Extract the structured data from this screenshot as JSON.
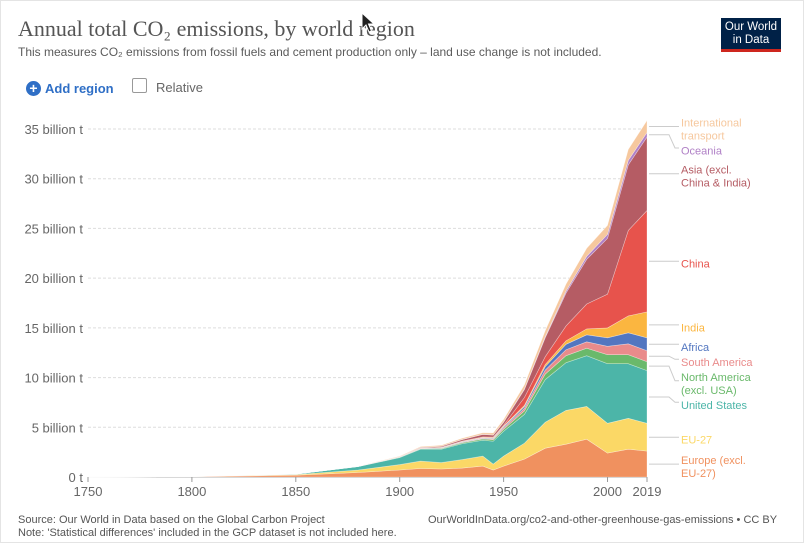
{
  "header": {
    "title": "Annual total CO₂ emissions, by world region",
    "subtitle": "This measures CO₂ emissions from fossil fuels and cement production only – land use change is not included.",
    "logo_line1": "Our World",
    "logo_line2": "in Data"
  },
  "controls": {
    "add_region_label": "Add region",
    "add_icon": "plus-circle-icon",
    "relative_label": "Relative",
    "relative_checked": false
  },
  "footer": {
    "source": "Source: Our World in Data based on the Global Carbon Project",
    "note": "Note: 'Statistical differences' included in the GCP dataset is not included here.",
    "url": "OurWorldInData.org/co2-and-other-greenhouse-gas-emissions • CC BY"
  },
  "chart_data": {
    "type": "area",
    "stacked": true,
    "x": [
      1750,
      1800,
      1850,
      1880,
      1900,
      1910,
      1920,
      1930,
      1940,
      1945,
      1950,
      1960,
      1970,
      1980,
      1990,
      2000,
      2010,
      2019
    ],
    "ylim": [
      0,
      35000000000
    ],
    "yticks": [
      0,
      5000000000,
      10000000000,
      15000000000,
      20000000000,
      25000000000,
      30000000000,
      35000000000
    ],
    "ytick_labels": [
      "0 t",
      "5 billion t",
      "10 billion t",
      "15 billion t",
      "20 billion t",
      "25 billion t",
      "30 billion t",
      "35 billion t"
    ],
    "xticks": [
      1750,
      1800,
      1850,
      1900,
      1950,
      2000,
      2019
    ],
    "xtick_labels": [
      "1750",
      "1800",
      "1850",
      "1900",
      "1950",
      "2000",
      "2019"
    ],
    "grid": true,
    "legend": "right",
    "series": [
      {
        "name": "Europe (excl. EU-27)",
        "color": "#f0915f",
        "values": [
          0.01,
          0.03,
          0.18,
          0.45,
          0.7,
          0.85,
          0.8,
          0.9,
          1.1,
          0.7,
          1.1,
          1.8,
          2.9,
          3.3,
          3.8,
          2.4,
          2.8,
          2.6
        ]
      },
      {
        "name": "EU-27",
        "color": "#fbd866",
        "values": [
          0,
          0.01,
          0.06,
          0.25,
          0.55,
          0.75,
          0.65,
          0.85,
          1.0,
          0.6,
          1.0,
          1.6,
          2.6,
          3.4,
          3.3,
          3.0,
          3.1,
          2.8
        ]
      },
      {
        "name": "United States",
        "color": "#4cb5a8",
        "values": [
          0,
          0,
          0.05,
          0.35,
          0.7,
          1.2,
          1.35,
          1.6,
          1.6,
          2.3,
          2.5,
          2.9,
          4.3,
          4.8,
          5.1,
          6.0,
          5.5,
          5.3
        ]
      },
      {
        "name": "North America (excl. USA)",
        "color": "#6ab96b",
        "values": [
          0,
          0,
          0,
          0.02,
          0.04,
          0.05,
          0.08,
          0.1,
          0.12,
          0.15,
          0.2,
          0.35,
          0.55,
          0.7,
          0.75,
          0.9,
          0.9,
          0.9
        ]
      },
      {
        "name": "South America",
        "color": "#e98b8b",
        "values": [
          0,
          0,
          0,
          0,
          0.01,
          0.02,
          0.03,
          0.05,
          0.06,
          0.08,
          0.15,
          0.25,
          0.4,
          0.6,
          0.65,
          0.85,
          1.1,
          1.1
        ]
      },
      {
        "name": "Africa",
        "color": "#5276c0",
        "values": [
          0,
          0,
          0,
          0,
          0.01,
          0.02,
          0.03,
          0.04,
          0.05,
          0.07,
          0.1,
          0.18,
          0.35,
          0.55,
          0.7,
          0.85,
          1.1,
          1.3
        ]
      },
      {
        "name": "India",
        "color": "#fbb640",
        "values": [
          0,
          0,
          0,
          0,
          0.01,
          0.02,
          0.03,
          0.04,
          0.05,
          0.06,
          0.08,
          0.12,
          0.2,
          0.35,
          0.6,
          1.0,
          1.7,
          2.6
        ]
      },
      {
        "name": "China",
        "color": "#e7534c",
        "values": [
          0,
          0,
          0,
          0,
          0,
          0.01,
          0.02,
          0.03,
          0.05,
          0.05,
          0.08,
          0.8,
          0.8,
          1.5,
          2.5,
          3.4,
          8.6,
          10.2
        ]
      },
      {
        "name": "Asia (excl. China & India)",
        "color": "#b55c64",
        "values": [
          0,
          0,
          0,
          0,
          0.02,
          0.05,
          0.1,
          0.15,
          0.25,
          0.2,
          0.3,
          0.8,
          1.9,
          3.3,
          4.5,
          5.6,
          6.6,
          7.4
        ]
      },
      {
        "name": "Oceania",
        "color": "#b080c6",
        "values": [
          0,
          0,
          0,
          0,
          0.01,
          0.01,
          0.01,
          0.02,
          0.02,
          0.02,
          0.03,
          0.06,
          0.1,
          0.2,
          0.3,
          0.4,
          0.45,
          0.45
        ]
      },
      {
        "name": "International transport",
        "color": "#f6c89e",
        "values": [
          0,
          0,
          0,
          0,
          0.05,
          0.08,
          0.1,
          0.12,
          0.15,
          0.2,
          0.25,
          0.4,
          0.6,
          0.7,
          0.8,
          0.9,
          1.1,
          1.2
        ]
      }
    ],
    "units": "billion t"
  }
}
